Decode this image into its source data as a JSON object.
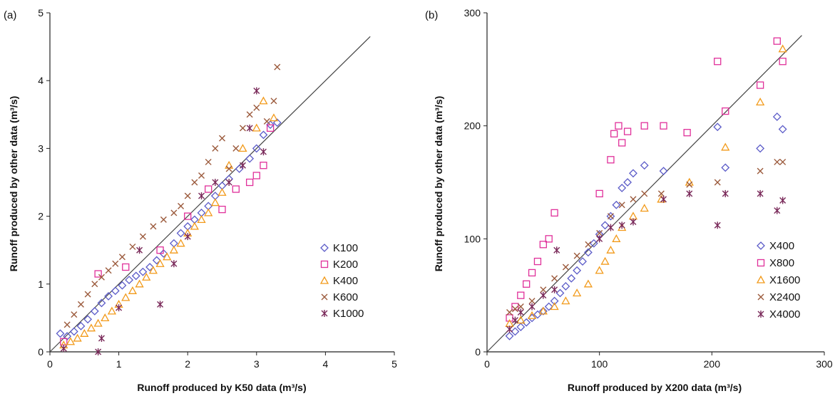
{
  "chart_data": [
    {
      "type": "scatter",
      "panel_label": "(a)",
      "xlabel": "Runoff produced by K50 data (m³/s)",
      "ylabel": "Runoff produced by other data (m³/s)",
      "xlim": [
        0,
        5
      ],
      "ylim": [
        0,
        5
      ],
      "xticks": [
        "0",
        "1",
        "2",
        "3",
        "4",
        "5"
      ],
      "yticks": [
        "0",
        "1",
        "2",
        "3",
        "4",
        "5"
      ],
      "grid": false,
      "legend_position": "right",
      "reference_line": "1:1",
      "series": [
        {
          "name": "K100",
          "marker": "diamond",
          "color": "#5b5bc8",
          "points": [
            [
              0.15,
              0.27
            ],
            [
              0.25,
              0.23
            ],
            [
              0.35,
              0.3
            ],
            [
              0.45,
              0.38
            ],
            [
              0.55,
              0.48
            ],
            [
              0.65,
              0.6
            ],
            [
              0.75,
              0.72
            ],
            [
              0.85,
              0.82
            ],
            [
              0.95,
              0.9
            ],
            [
              1.05,
              0.98
            ],
            [
              1.15,
              1.06
            ],
            [
              1.25,
              1.12
            ],
            [
              1.35,
              1.18
            ],
            [
              1.45,
              1.25
            ],
            [
              1.55,
              1.35
            ],
            [
              1.65,
              1.45
            ],
            [
              1.8,
              1.6
            ],
            [
              1.9,
              1.75
            ],
            [
              2.0,
              1.85
            ],
            [
              2.1,
              1.95
            ],
            [
              2.2,
              2.05
            ],
            [
              2.3,
              2.15
            ],
            [
              2.4,
              2.3
            ],
            [
              2.5,
              2.45
            ],
            [
              2.6,
              2.55
            ],
            [
              2.75,
              2.7
            ],
            [
              2.9,
              2.85
            ],
            [
              3.0,
              3.0
            ],
            [
              3.1,
              3.2
            ],
            [
              3.2,
              3.35
            ],
            [
              3.3,
              3.38
            ]
          ]
        },
        {
          "name": "K200",
          "marker": "square",
          "color": "#e0309a",
          "points": [
            [
              0.2,
              0.15
            ],
            [
              0.7,
              1.15
            ],
            [
              1.1,
              1.25
            ],
            [
              1.6,
              1.5
            ],
            [
              2.0,
              2.0
            ],
            [
              2.3,
              2.4
            ],
            [
              2.5,
              2.1
            ],
            [
              2.7,
              2.4
            ],
            [
              2.9,
              2.5
            ],
            [
              3.0,
              2.6
            ],
            [
              3.1,
              2.75
            ],
            [
              3.2,
              3.3
            ]
          ]
        },
        {
          "name": "K400",
          "marker": "triangle",
          "color": "#f29a1a",
          "points": [
            [
              0.2,
              0.1
            ],
            [
              0.3,
              0.15
            ],
            [
              0.4,
              0.2
            ],
            [
              0.5,
              0.27
            ],
            [
              0.6,
              0.35
            ],
            [
              0.7,
              0.42
            ],
            [
              0.8,
              0.5
            ],
            [
              0.9,
              0.6
            ],
            [
              1.0,
              0.7
            ],
            [
              1.1,
              0.8
            ],
            [
              1.2,
              0.9
            ],
            [
              1.3,
              1.0
            ],
            [
              1.4,
              1.1
            ],
            [
              1.5,
              1.2
            ],
            [
              1.6,
              1.3
            ],
            [
              1.7,
              1.4
            ],
            [
              1.8,
              1.5
            ],
            [
              1.9,
              1.6
            ],
            [
              2.0,
              1.75
            ],
            [
              2.1,
              1.85
            ],
            [
              2.2,
              1.95
            ],
            [
              2.3,
              2.05
            ],
            [
              2.4,
              2.2
            ],
            [
              2.5,
              2.35
            ],
            [
              2.6,
              2.75
            ],
            [
              2.8,
              3.0
            ],
            [
              3.0,
              3.3
            ],
            [
              3.1,
              3.7
            ],
            [
              3.25,
              3.45
            ]
          ]
        },
        {
          "name": "K600",
          "marker": "x",
          "color": "#9b5a3c",
          "points": [
            [
              0.25,
              0.4
            ],
            [
              0.35,
              0.55
            ],
            [
              0.45,
              0.7
            ],
            [
              0.55,
              0.85
            ],
            [
              0.65,
              1.0
            ],
            [
              0.75,
              1.1
            ],
            [
              0.85,
              1.2
            ],
            [
              0.95,
              1.3
            ],
            [
              1.05,
              1.4
            ],
            [
              1.2,
              1.55
            ],
            [
              1.35,
              1.7
            ],
            [
              1.5,
              1.85
            ],
            [
              1.65,
              1.95
            ],
            [
              1.8,
              2.05
            ],
            [
              1.9,
              2.15
            ],
            [
              2.0,
              2.3
            ],
            [
              2.1,
              2.5
            ],
            [
              2.2,
              2.6
            ],
            [
              2.3,
              2.8
            ],
            [
              2.4,
              3.0
            ],
            [
              2.5,
              3.15
            ],
            [
              2.6,
              2.7
            ],
            [
              2.7,
              3.0
            ],
            [
              2.8,
              3.3
            ],
            [
              2.9,
              3.5
            ],
            [
              3.0,
              3.6
            ],
            [
              3.15,
              3.4
            ],
            [
              3.25,
              3.7
            ],
            [
              3.3,
              4.2
            ]
          ]
        },
        {
          "name": "K1000",
          "marker": "star",
          "color": "#7a2a5a",
          "points": [
            [
              0.2,
              0.05
            ],
            [
              0.7,
              0.0
            ],
            [
              0.75,
              0.2
            ],
            [
              1.0,
              0.65
            ],
            [
              1.3,
              1.5
            ],
            [
              1.6,
              0.7
            ],
            [
              1.8,
              1.3
            ],
            [
              2.0,
              1.7
            ],
            [
              2.2,
              2.3
            ],
            [
              2.4,
              2.5
            ],
            [
              2.6,
              2.5
            ],
            [
              2.8,
              2.75
            ],
            [
              2.9,
              3.3
            ],
            [
              3.0,
              3.85
            ],
            [
              3.1,
              2.95
            ]
          ]
        }
      ]
    },
    {
      "type": "scatter",
      "panel_label": "(b)",
      "xlabel": "Runoff produced by X200 data (m³/s)",
      "ylabel": "Runoff produced by other data (m³/s)",
      "xlim": [
        0,
        300
      ],
      "ylim": [
        0,
        300
      ],
      "xticks": [
        "0",
        "100",
        "200",
        "300"
      ],
      "yticks": [
        "0",
        "100",
        "200",
        "300"
      ],
      "grid": false,
      "legend_position": "right",
      "reference_line": "1:1",
      "series": [
        {
          "name": "X400",
          "marker": "diamond",
          "color": "#5b5bc8",
          "points": [
            [
              20,
              14
            ],
            [
              25,
              18
            ],
            [
              30,
              22
            ],
            [
              35,
              26
            ],
            [
              40,
              30
            ],
            [
              45,
              33
            ],
            [
              50,
              36
            ],
            [
              55,
              40
            ],
            [
              60,
              45
            ],
            [
              65,
              52
            ],
            [
              70,
              58
            ],
            [
              75,
              65
            ],
            [
              80,
              72
            ],
            [
              85,
              80
            ],
            [
              90,
              88
            ],
            [
              95,
              96
            ],
            [
              100,
              104
            ],
            [
              105,
              112
            ],
            [
              110,
              120
            ],
            [
              115,
              130
            ],
            [
              120,
              145
            ],
            [
              125,
              150
            ],
            [
              130,
              158
            ],
            [
              140,
              165
            ],
            [
              157,
              160
            ],
            [
              205,
              199
            ],
            [
              212,
              163
            ],
            [
              243,
              180
            ],
            [
              258,
              208
            ],
            [
              263,
              197
            ]
          ]
        },
        {
          "name": "X800",
          "marker": "square",
          "color": "#e0309a",
          "points": [
            [
              20,
              30
            ],
            [
              25,
              40
            ],
            [
              30,
              50
            ],
            [
              35,
              60
            ],
            [
              40,
              70
            ],
            [
              45,
              80
            ],
            [
              50,
              95
            ],
            [
              55,
              100
            ],
            [
              60,
              123
            ],
            [
              100,
              140
            ],
            [
              110,
              170
            ],
            [
              113,
              193
            ],
            [
              117,
              200
            ],
            [
              120,
              185
            ],
            [
              125,
              195
            ],
            [
              140,
              200
            ],
            [
              157,
              200
            ],
            [
              178,
              194
            ],
            [
              205,
              257
            ],
            [
              212,
              213
            ],
            [
              243,
              236
            ],
            [
              258,
              275
            ],
            [
              263,
              257
            ]
          ]
        },
        {
          "name": "X1600",
          "marker": "triangle",
          "color": "#f29a1a",
          "points": [
            [
              20,
              25
            ],
            [
              30,
              28
            ],
            [
              40,
              32
            ],
            [
              50,
              36
            ],
            [
              60,
              40
            ],
            [
              70,
              45
            ],
            [
              80,
              52
            ],
            [
              90,
              60
            ],
            [
              100,
              72
            ],
            [
              105,
              80
            ],
            [
              110,
              90
            ],
            [
              115,
              100
            ],
            [
              120,
              110
            ],
            [
              130,
              120
            ],
            [
              140,
              127
            ],
            [
              155,
              135
            ],
            [
              180,
              150
            ],
            [
              212,
              181
            ],
            [
              243,
              221
            ],
            [
              263,
              268
            ]
          ]
        },
        {
          "name": "X2400",
          "marker": "x",
          "color": "#9b5a3c",
          "points": [
            [
              20,
              35
            ],
            [
              25,
              38
            ],
            [
              30,
              40
            ],
            [
              40,
              45
            ],
            [
              50,
              55
            ],
            [
              60,
              65
            ],
            [
              70,
              75
            ],
            [
              80,
              85
            ],
            [
              90,
              95
            ],
            [
              100,
              105
            ],
            [
              110,
              120
            ],
            [
              120,
              130
            ],
            [
              130,
              135
            ],
            [
              140,
              140
            ],
            [
              155,
              140
            ],
            [
              180,
              148
            ],
            [
              205,
              150
            ],
            [
              243,
              160
            ],
            [
              258,
              168
            ],
            [
              263,
              168
            ]
          ]
        },
        {
          "name": "X4000",
          "marker": "star",
          "color": "#7a2a5a",
          "points": [
            [
              20,
              20
            ],
            [
              25,
              28
            ],
            [
              30,
              35
            ],
            [
              40,
              40
            ],
            [
              50,
              50
            ],
            [
              60,
              55
            ],
            [
              62,
              90
            ],
            [
              100,
              100
            ],
            [
              110,
              110
            ],
            [
              120,
              112
            ],
            [
              130,
              115
            ],
            [
              157,
              135
            ],
            [
              180,
              140
            ],
            [
              205,
              112
            ],
            [
              212,
              140
            ],
            [
              243,
              140
            ],
            [
              258,
              125
            ],
            [
              263,
              134
            ]
          ]
        }
      ]
    }
  ]
}
